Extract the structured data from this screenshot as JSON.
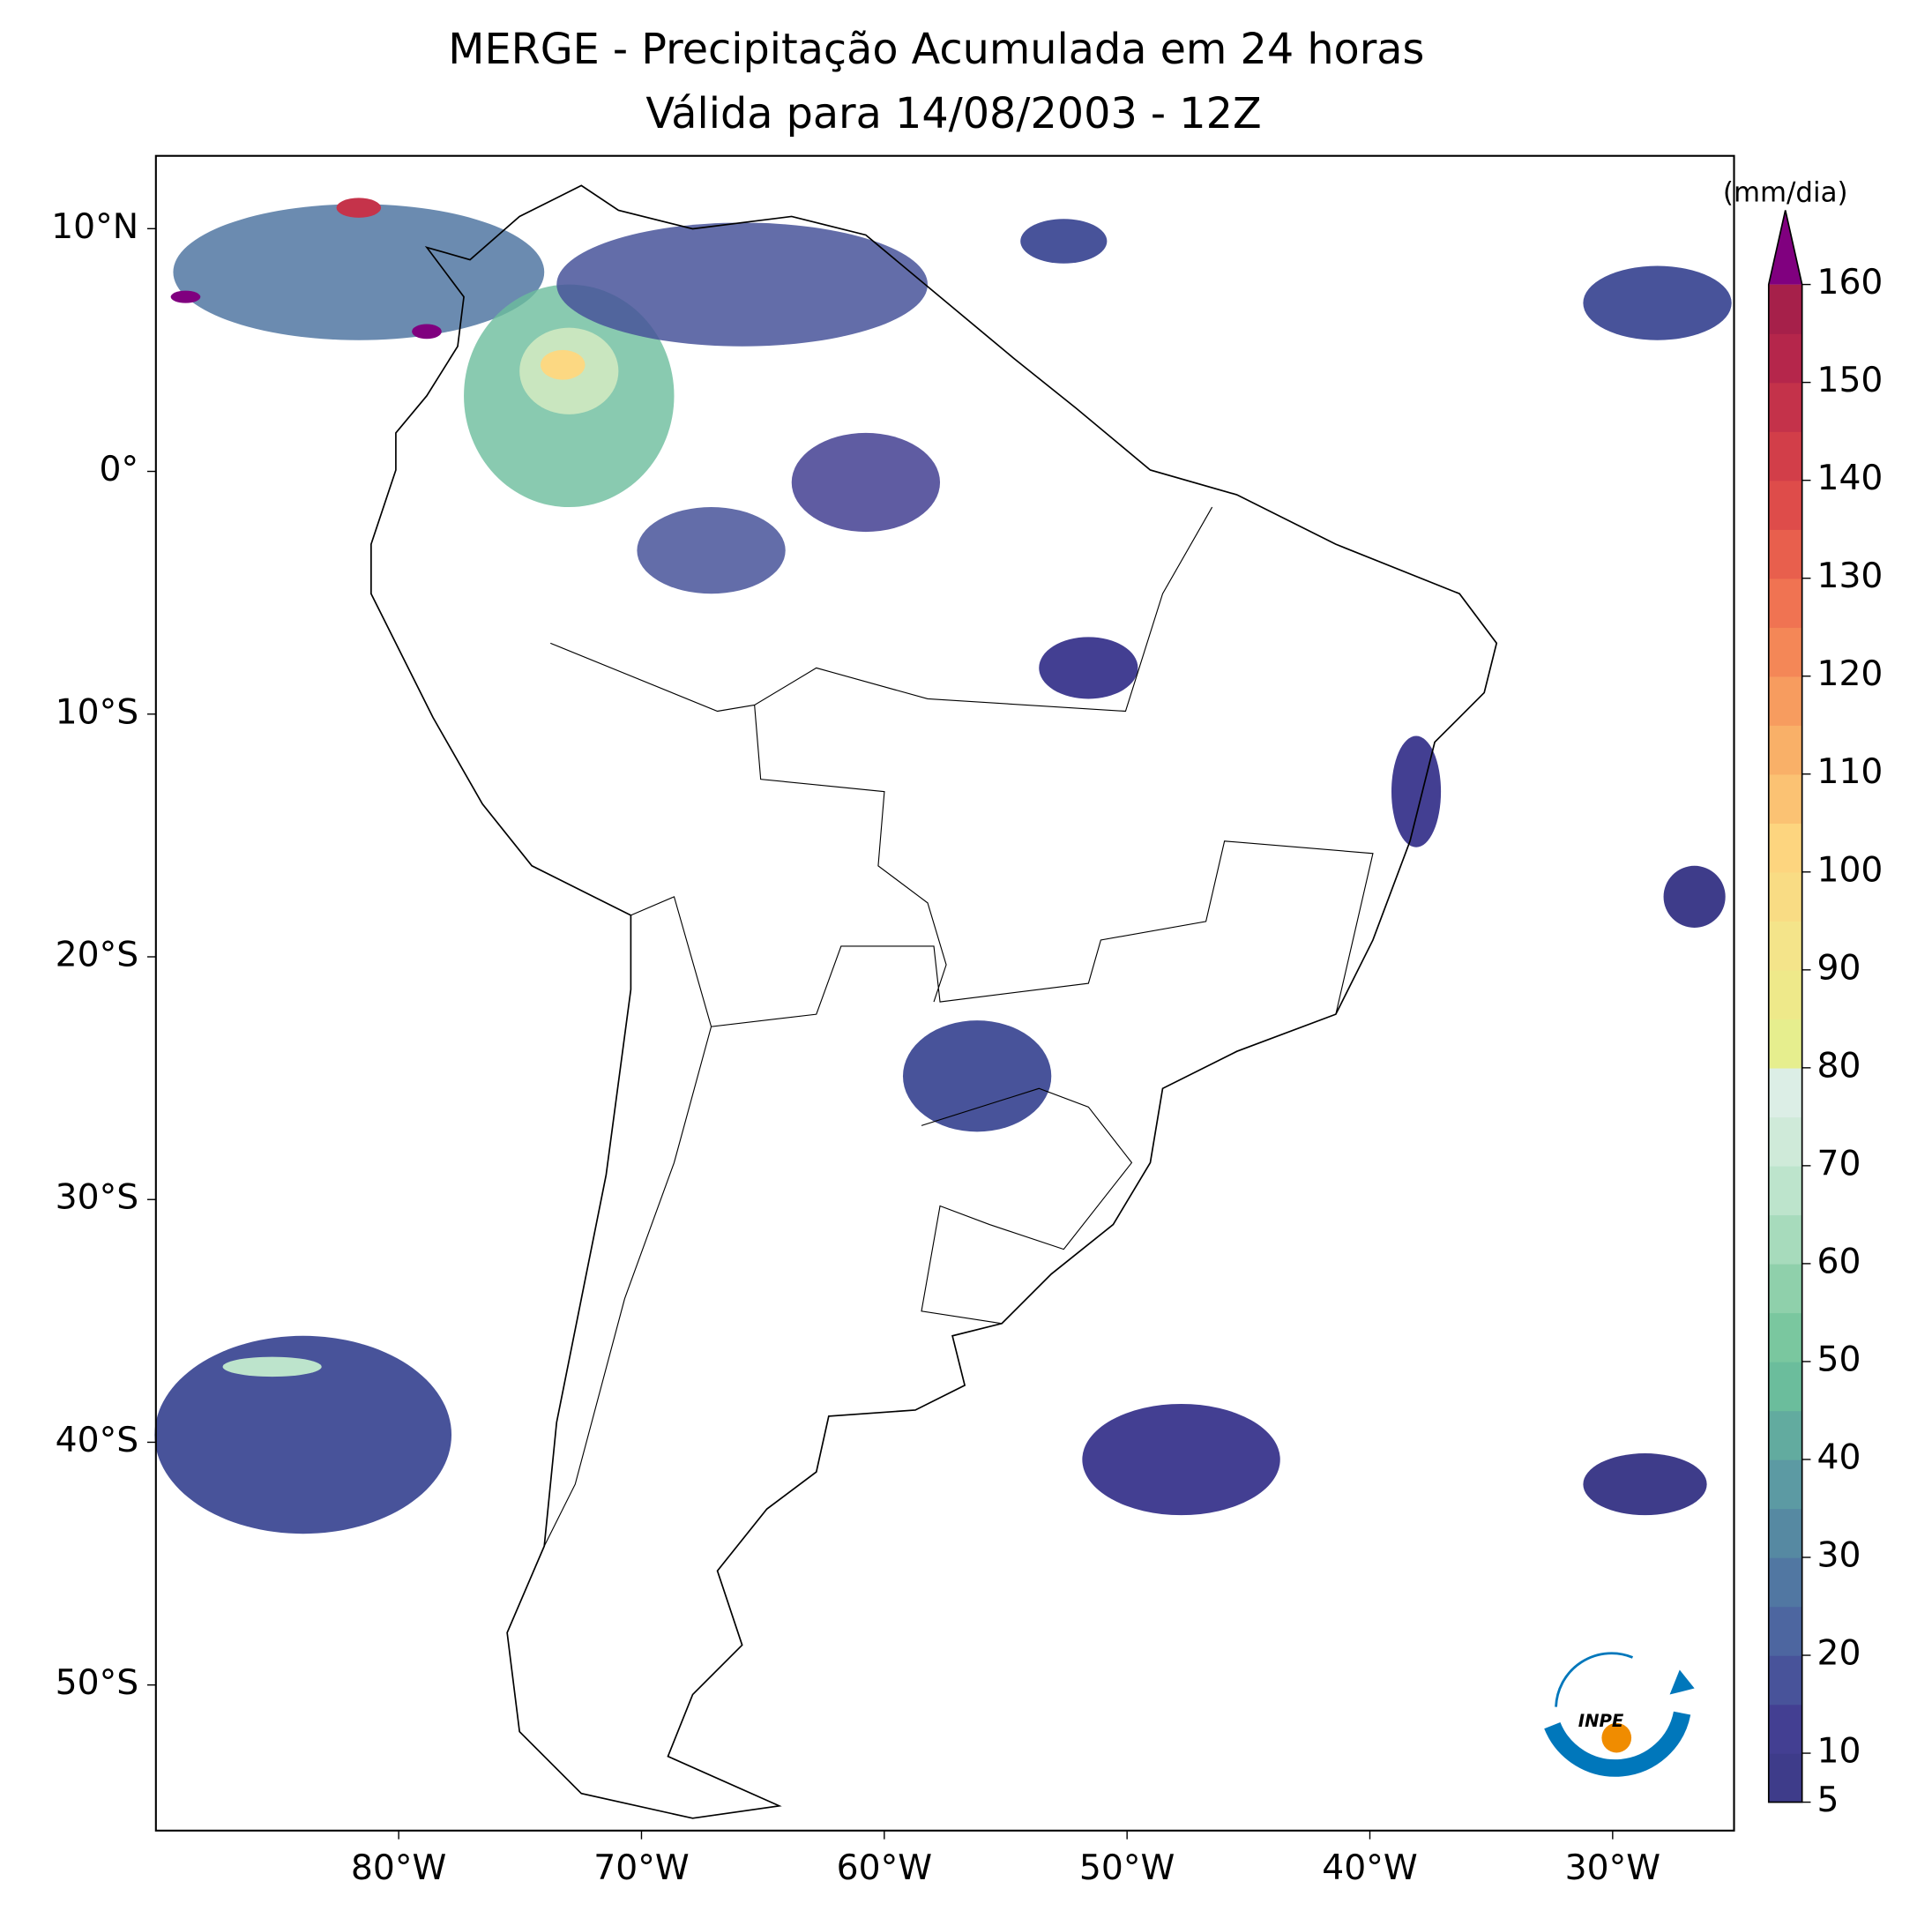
{
  "map_data": {
    "type": "map",
    "title": "MERGE - Precipitação Acumulada em 24 horas",
    "subtitle": "Válida para 14/08/2003 - 12Z",
    "xlim": [
      -90,
      -25
    ],
    "ylim": [
      -56,
      13
    ],
    "xticks": [
      {
        "value": -80,
        "label": "80°W"
      },
      {
        "value": -70,
        "label": "70°W"
      },
      {
        "value": -60,
        "label": "60°W"
      },
      {
        "value": -50,
        "label": "50°W"
      },
      {
        "value": -40,
        "label": "40°W"
      },
      {
        "value": -30,
        "label": "30°W"
      }
    ],
    "yticks": [
      {
        "value": 10,
        "label": "10°N"
      },
      {
        "value": 0,
        "label": "0°"
      },
      {
        "value": -10,
        "label": "10°S"
      },
      {
        "value": -20,
        "label": "20°S"
      },
      {
        "value": -30,
        "label": "30°S"
      },
      {
        "value": -40,
        "label": "40°S"
      },
      {
        "value": -50,
        "label": "50°S"
      }
    ],
    "colorbar": {
      "label": "(mm/dia)",
      "lim": [
        5,
        160
      ],
      "ticks": [
        5,
        10,
        20,
        30,
        40,
        50,
        60,
        70,
        80,
        90,
        100,
        110,
        120,
        130,
        140,
        150,
        160
      ],
      "colors": [
        "#3e3c8a",
        "#433f92",
        "#48539a",
        "#4d66a0",
        "#5177a2",
        "#5689a2",
        "#5c9aa3",
        "#62ab9f",
        "#6bbd9c",
        "#7ac79f",
        "#8fd0ab",
        "#a7dbbc",
        "#bde4cc",
        "#cfead9",
        "#dceee6",
        "#e6ee8e",
        "#eee98a",
        "#f4e48a",
        "#f9dc84",
        "#fdd57f",
        "#fbc273",
        "#f9b068",
        "#f79c5f",
        "#f48757",
        "#f07352",
        "#e85f4d",
        "#de4c4a",
        "#d23e49",
        "#c4324a",
        "#b5264b",
        "#a6204a"
      ],
      "extend_color": "#80007f"
    }
  }
}
